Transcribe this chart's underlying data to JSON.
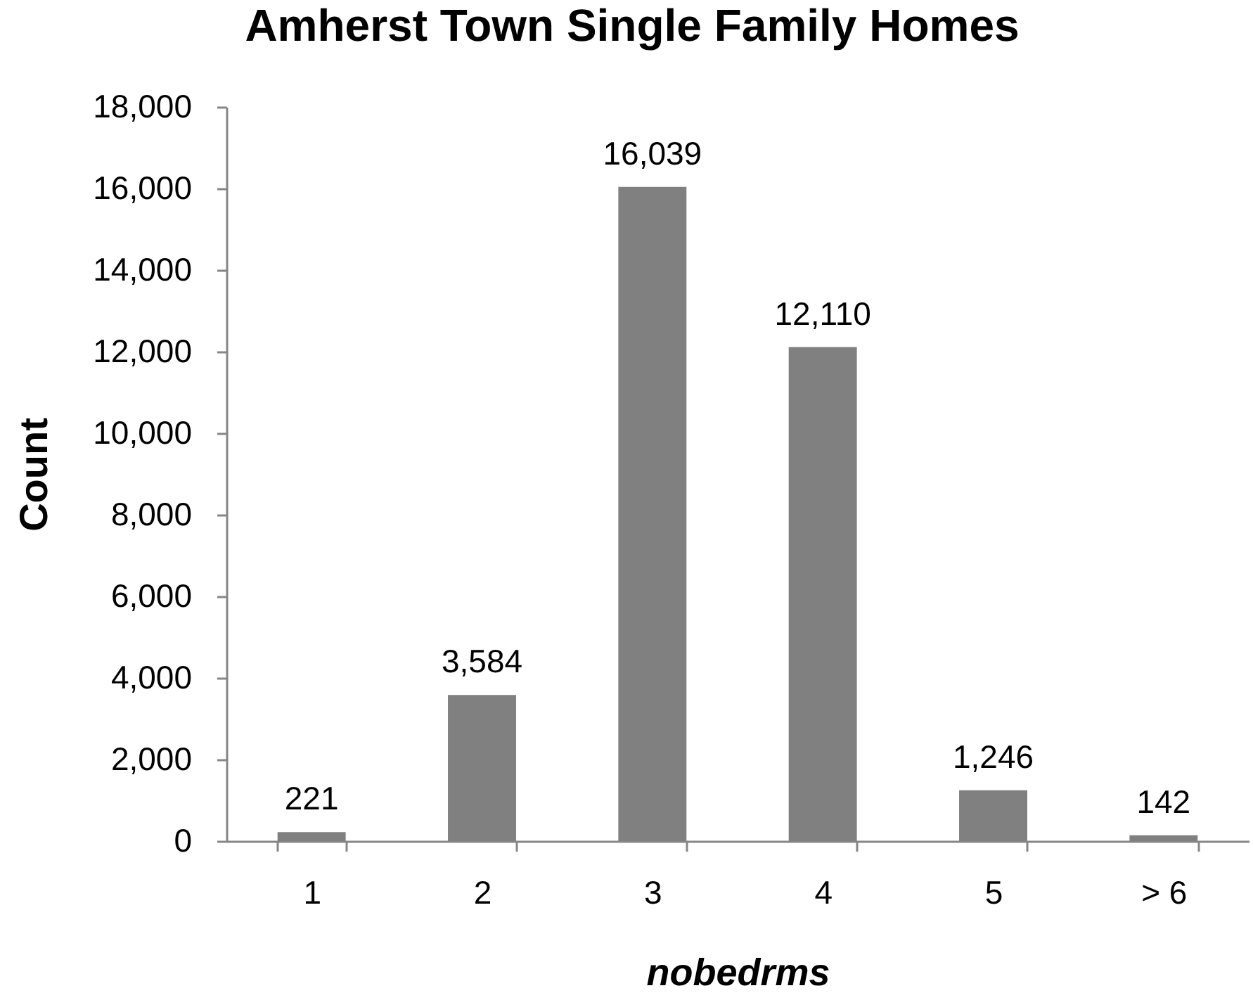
{
  "chart_data": {
    "type": "bar",
    "title": "Amherst Town Single Family Homes",
    "xlabel": "nobedrms",
    "ylabel": "Count",
    "categories": [
      "1",
      "2",
      "3",
      "4",
      "5",
      "> 6"
    ],
    "values": [
      221,
      3584,
      16039,
      12110,
      1246,
      142
    ],
    "value_labels": [
      "221",
      "3,584",
      "16,039",
      "12,110",
      "1,246",
      "142"
    ],
    "color": "#808080",
    "ylim": [
      0,
      18000
    ],
    "yticks": [
      0,
      {
        "value": 2000,
        "label": "2,000"
      },
      {
        "value": 4000,
        "label": "4,000"
      },
      {
        "value": 6000,
        "label": "6,000"
      },
      {
        "value": 8000,
        "label": "8,000"
      },
      {
        "value": 10000,
        "label": "10,000"
      },
      {
        "value": 12000,
        "label": "12,000"
      },
      {
        "value": 14000,
        "label": "14,000"
      },
      {
        "value": 16000,
        "label": "16,000"
      },
      {
        "value": 18000,
        "label": "18,000"
      }
    ],
    "grid": false
  }
}
